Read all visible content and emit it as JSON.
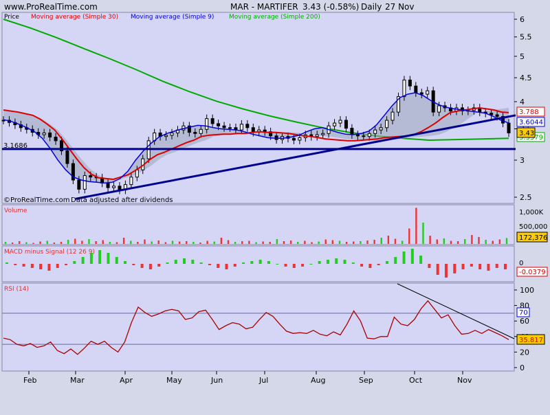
{
  "header": {
    "site": "www.ProRealTime.com",
    "symbol": "MAR - MARTIFER",
    "price_change": "3.43 (-0.58%)",
    "period": "Daily",
    "date": "27 Nov"
  },
  "colors": {
    "background": "#d4d8e8",
    "panel": "#d5d5f5",
    "sma30": "#dd0000",
    "sma9": "#0000dd",
    "sma200": "#00aa00",
    "trend": "#000090",
    "up_bar": "#22cc22",
    "down_bar": "#ee3333"
  },
  "price_panel": {
    "title": "Price",
    "legend": [
      {
        "label": "Moving average (Simple 30)",
        "color": "#dd0000"
      },
      {
        "label": "Moving average (Simple 9)",
        "color": "#0000dd"
      },
      {
        "label": "Moving average (Simple 200)",
        "color": "#00aa00"
      }
    ],
    "horizontal_level_label": "3.1686",
    "footer_left": "©ProRealTime.com",
    "footer_right": "Data adjusted after dividends",
    "axis_ticks": [
      "6",
      "5.5",
      "5",
      "4.5",
      "4",
      "3.5",
      "3",
      "2.5"
    ],
    "tags": {
      "sma30": "3.788",
      "sma9": "3.6044",
      "price": "3.43",
      "sma200": "3.3379"
    }
  },
  "volume_panel": {
    "title": "Volume",
    "axis_ticks": [
      "1,000K",
      "500,000"
    ],
    "tag": "172,376"
  },
  "macd_panel": {
    "title": "MACD minus Signal (12 26 9)",
    "axis_ticks": [
      "0"
    ],
    "tag": "-0.0379"
  },
  "rsi_panel": {
    "title": "RSI (14)",
    "axis_ticks": [
      "100",
      "80",
      "60",
      "40",
      "20",
      "0"
    ],
    "upper_tag": "70",
    "value_tag": "35.817"
  },
  "chart_data": [
    {
      "type": "line",
      "title": "MAR - MARTIFER",
      "x_ticks": [
        "Feb",
        "Mar",
        "Apr",
        "May",
        "Jun",
        "Jul",
        "Aug",
        "Sep",
        "Oct",
        "Nov"
      ],
      "ylim": [
        2.4,
        6.1
      ],
      "close": [
        3.65,
        3.61,
        3.57,
        3.52,
        3.49,
        3.44,
        3.4,
        3.43,
        3.36,
        3.3,
        3.14,
        2.95,
        2.72,
        2.6,
        2.78,
        2.76,
        2.75,
        2.68,
        2.62,
        2.64,
        2.59,
        2.66,
        2.76,
        2.86,
        3.02,
        3.3,
        3.43,
        3.37,
        3.39,
        3.43,
        3.48,
        3.55,
        3.44,
        3.42,
        3.49,
        3.68,
        3.59,
        3.55,
        3.52,
        3.52,
        3.48,
        3.58,
        3.52,
        3.44,
        3.48,
        3.45,
        3.38,
        3.32,
        3.37,
        3.34,
        3.31,
        3.35,
        3.4,
        3.37,
        3.4,
        3.42,
        3.55,
        3.6,
        3.65,
        3.51,
        3.4,
        3.38,
        3.37,
        3.42,
        3.48,
        3.52,
        3.65,
        3.8,
        4.1,
        4.45,
        4.32,
        4.18,
        4.15,
        4.22,
        3.8,
        3.92,
        3.88,
        3.82,
        3.88,
        3.82,
        3.83,
        3.88,
        3.8,
        3.78,
        3.75,
        3.72,
        3.6,
        3.43
      ],
      "series": [
        {
          "name": "Moving average (Simple 30)",
          "values": [
            3.84,
            3.82,
            3.8,
            3.77,
            3.74,
            3.67,
            3.58,
            3.48,
            3.33,
            3.17,
            3.02,
            2.89,
            2.8,
            2.75,
            2.74,
            2.73,
            2.76,
            2.79,
            2.85,
            2.92,
            3.01,
            3.08,
            3.12,
            3.17,
            3.22,
            3.27,
            3.31,
            3.37,
            3.39,
            3.4,
            3.41,
            3.41,
            3.42,
            3.42,
            3.44,
            3.45,
            3.44,
            3.44,
            3.43,
            3.42,
            3.4,
            3.38,
            3.37,
            3.35,
            3.33,
            3.32,
            3.31,
            3.3,
            3.3,
            3.31,
            3.32,
            3.33,
            3.35,
            3.36,
            3.37,
            3.38,
            3.4,
            3.45,
            3.52,
            3.6,
            3.7,
            3.79,
            3.82,
            3.84,
            3.86,
            3.88,
            3.86,
            3.84,
            3.8,
            3.79
          ]
        },
        {
          "name": "Moving average (Simple 9)",
          "values": [
            3.66,
            3.63,
            3.58,
            3.52,
            3.45,
            3.34,
            3.18,
            3.0,
            2.86,
            2.76,
            2.72,
            2.7,
            2.69,
            2.68,
            2.69,
            2.74,
            2.84,
            3.0,
            3.14,
            3.26,
            3.36,
            3.42,
            3.46,
            3.5,
            3.53,
            3.56,
            3.55,
            3.52,
            3.5,
            3.49,
            3.48,
            3.45,
            3.41,
            3.38,
            3.35,
            3.34,
            3.34,
            3.36,
            3.39,
            3.45,
            3.5,
            3.52,
            3.48,
            3.44,
            3.41,
            3.4,
            3.42,
            3.46,
            3.57,
            3.74,
            3.92,
            4.08,
            4.15,
            4.18,
            4.12,
            4.02,
            3.94,
            3.89,
            3.86,
            3.84,
            3.82,
            3.8,
            3.78,
            3.72,
            3.65,
            3.6
          ]
        },
        {
          "name": "Moving average (Simple 200)",
          "values": [
            6.0,
            5.75,
            5.48,
            5.2,
            4.94,
            4.68,
            4.42,
            4.2,
            4.01,
            3.86,
            3.73,
            3.62,
            3.52,
            3.44,
            3.38,
            3.34,
            3.31,
            3.32,
            3.33,
            3.34
          ]
        }
      ],
      "trendline": {
        "start": {
          "x": "Mar",
          "y": 2.5
        },
        "end": {
          "x": "Nov 27",
          "y": 3.7
        }
      },
      "horizontal_level": 3.1686
    },
    {
      "type": "bar",
      "title": "Volume",
      "ylim": [
        0,
        1100000
      ],
      "values": [
        60000,
        40000,
        80000,
        50000,
        30000,
        70000,
        90000,
        40000,
        60000,
        120000,
        150000,
        90000,
        140000,
        80000,
        110000,
        60000,
        50000,
        180000,
        90000,
        60000,
        130000,
        70000,
        100000,
        50000,
        90000,
        70000,
        80000,
        60000,
        40000,
        90000,
        70000,
        180000,
        110000,
        60000,
        80000,
        90000,
        50000,
        70000,
        60000,
        140000,
        80000,
        100000,
        60000,
        90000,
        50000,
        70000,
        130000,
        110000,
        90000,
        60000,
        70000,
        80000,
        100000,
        120000,
        180000,
        240000,
        150000,
        90000,
        450000,
        1050000,
        620000,
        240000,
        130000,
        160000,
        90000,
        80000,
        140000,
        260000,
        200000,
        120000,
        90000,
        130000,
        172376
      ]
    },
    {
      "type": "bar",
      "title": "MACD minus Signal (12 26 9)",
      "ylim": [
        -0.12,
        0.12
      ],
      "values": [
        0.01,
        -0.01,
        -0.02,
        -0.03,
        -0.04,
        -0.05,
        -0.03,
        -0.01,
        0.02,
        0.05,
        0.08,
        0.1,
        0.08,
        0.05,
        0.02,
        -0.01,
        -0.03,
        -0.04,
        -0.02,
        0.01,
        0.03,
        0.04,
        0.03,
        0.01,
        -0.01,
        -0.03,
        -0.04,
        -0.02,
        0.01,
        0.02,
        0.03,
        0.02,
        0.0,
        -0.02,
        -0.03,
        -0.02,
        0.0,
        0.02,
        0.03,
        0.04,
        0.03,
        0.01,
        -0.02,
        -0.03,
        -0.01,
        0.02,
        0.05,
        0.09,
        0.11,
        0.06,
        -0.03,
        -0.08,
        -0.1,
        -0.07,
        -0.04,
        -0.02,
        -0.04,
        -0.05,
        -0.03,
        -0.04
      ]
    },
    {
      "type": "line",
      "title": "RSI (14)",
      "ylim": [
        0,
        100
      ],
      "reference_lines": [
        70,
        30
      ],
      "values": [
        38,
        36,
        30,
        28,
        31,
        26,
        28,
        33,
        22,
        18,
        24,
        17,
        25,
        34,
        30,
        34,
        26,
        20,
        33,
        58,
        78,
        71,
        66,
        69,
        73,
        75,
        73,
        62,
        64,
        72,
        74,
        62,
        49,
        54,
        58,
        56,
        50,
        52,
        62,
        71,
        66,
        56,
        47,
        44,
        45,
        44,
        48,
        43,
        41,
        46,
        42,
        56,
        73,
        60,
        38,
        37,
        40,
        40,
        65,
        56,
        54,
        62,
        76,
        86,
        75,
        64,
        68,
        54,
        43,
        44,
        48,
        44,
        49,
        45,
        41,
        36
      ]
    }
  ]
}
